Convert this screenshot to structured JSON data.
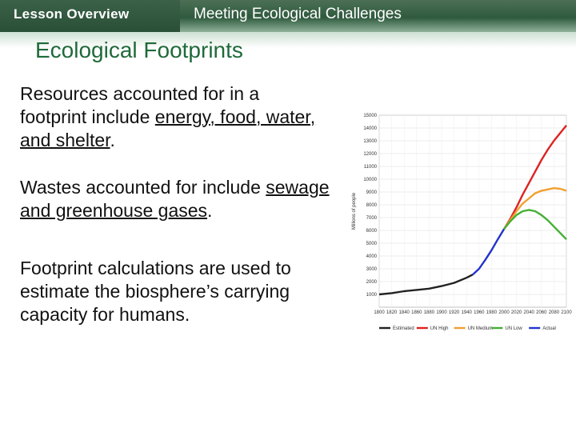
{
  "header": {
    "lesson_label": "Lesson Overview",
    "topic": "Meeting Ecological Challenges"
  },
  "title": "Ecological Footprints",
  "paragraphs": {
    "p1_pre": "Resources accounted for in a footprint include ",
    "p1_link": "energy, food, water, and shelter",
    "p1_post": ".",
    "p2_pre": "Wastes accounted for include ",
    "p2_link": "sewage and greenhouse gases",
    "p2_post": ".",
    "p3": "Footprint calculations are used to estimate the biosphere’s carrying capacity for humans."
  },
  "colors": {
    "header_bg": "#2f5a3e",
    "title": "#1f6a3a",
    "estimated": "#222222",
    "un_high": "#dd2222",
    "un_medium": "#f0a030",
    "un_low": "#44b034",
    "actual": "#2233cc"
  },
  "chart_data": {
    "type": "line",
    "ylabel": "Millions of people",
    "ylim": [
      0,
      15000
    ],
    "xlim": [
      1800,
      2100
    ],
    "yticks": [
      "1000",
      "2000",
      "3000",
      "4000",
      "5000",
      "6000",
      "7000",
      "8000",
      "9000",
      "10000",
      "11000",
      "12000",
      "13000",
      "14000",
      "15000"
    ],
    "xticks": [
      "1800",
      "1820",
      "1840",
      "1860",
      "1880",
      "1900",
      "1920",
      "1940",
      "1960",
      "1980",
      "2000",
      "2020",
      "2040",
      "2060",
      "2080",
      "2100"
    ],
    "series": [
      {
        "name": "Estimated",
        "color": "#222222",
        "x": [
          1800,
          1820,
          1840,
          1860,
          1880,
          1900,
          1920,
          1940,
          1950
        ],
        "y": [
          1000,
          1100,
          1250,
          1350,
          1450,
          1650,
          1900,
          2300,
          2550
        ]
      },
      {
        "name": "UN High",
        "color": "#dd2222",
        "x": [
          2000,
          2010,
          2020,
          2030,
          2040,
          2050,
          2060,
          2070,
          2080,
          2090,
          2100
        ],
        "y": [
          6100,
          6900,
          7800,
          8800,
          9700,
          10600,
          11500,
          12300,
          13000,
          13600,
          14200
        ]
      },
      {
        "name": "UN Medium",
        "color": "#f0a030",
        "x": [
          2000,
          2010,
          2020,
          2030,
          2040,
          2050,
          2060,
          2070,
          2080,
          2090,
          2100
        ],
        "y": [
          6100,
          6800,
          7500,
          8100,
          8500,
          8900,
          9100,
          9200,
          9300,
          9250,
          9100
        ]
      },
      {
        "name": "UN Low",
        "color": "#44b034",
        "x": [
          2000,
          2010,
          2020,
          2030,
          2040,
          2050,
          2060,
          2070,
          2080,
          2090,
          2100
        ],
        "y": [
          6100,
          6700,
          7200,
          7500,
          7600,
          7500,
          7200,
          6800,
          6300,
          5800,
          5300
        ]
      },
      {
        "name": "Actual",
        "color": "#2233cc",
        "x": [
          1950,
          1960,
          1970,
          1980,
          1990,
          2000
        ],
        "y": [
          2550,
          3000,
          3700,
          4450,
          5300,
          6100
        ]
      }
    ]
  }
}
